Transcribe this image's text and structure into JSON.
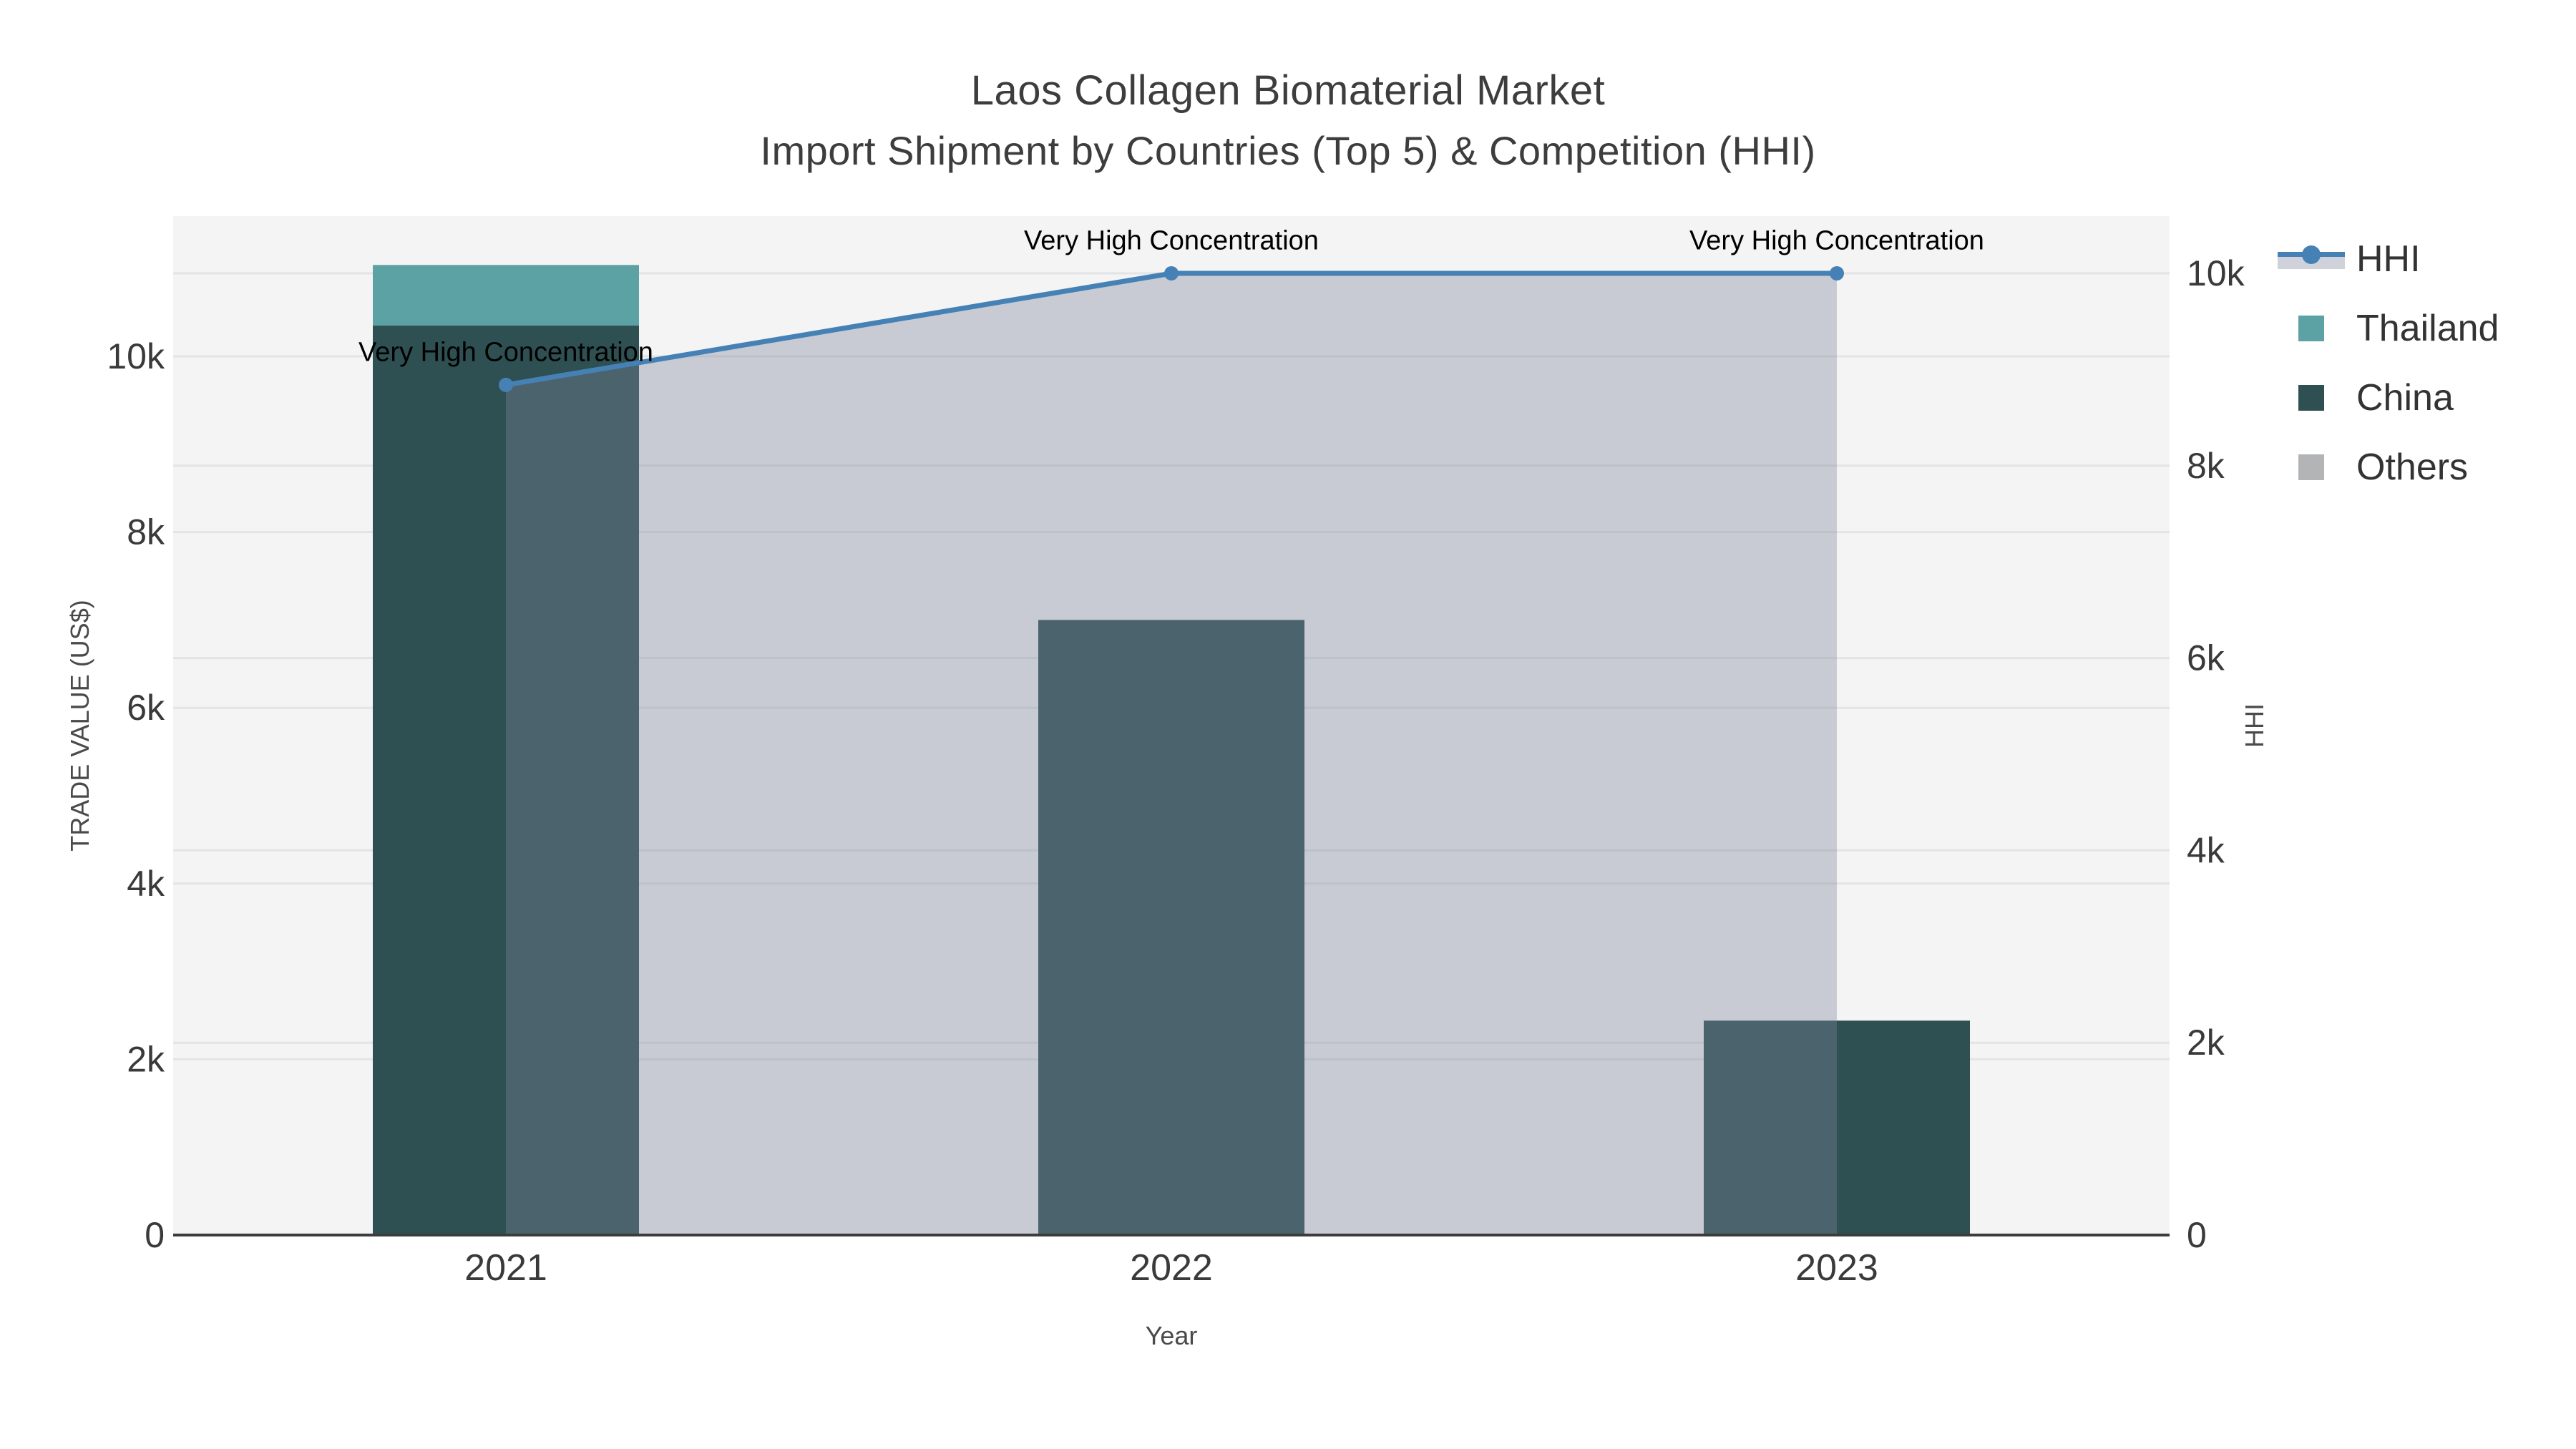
{
  "title": {
    "line1": "Laos Collagen Biomaterial Market",
    "line2": "Import Shipment by Countries (Top 5) & Competition (HHI)"
  },
  "axes": {
    "x": {
      "title": "Year"
    },
    "y_left": {
      "title": "TRADE VALUE (US$)",
      "tick_labels": [
        "0",
        "2k",
        "4k",
        "6k",
        "8k",
        "10k"
      ],
      "tick_values": [
        0,
        2000,
        4000,
        6000,
        8000,
        10000
      ]
    },
    "y_right": {
      "title": "HHI",
      "tick_labels": [
        "0",
        "2k",
        "4k",
        "6k",
        "8k",
        "10k"
      ],
      "tick_values": [
        0,
        2000,
        4000,
        6000,
        8000,
        10000
      ]
    }
  },
  "legend": {
    "items": [
      {
        "label": "HHI"
      },
      {
        "label": "Thailand"
      },
      {
        "label": "China"
      },
      {
        "label": "Others"
      }
    ]
  },
  "annotations": [
    {
      "text": "Very High Concentration",
      "category": "2021"
    },
    {
      "text": "Very High Concentration",
      "category": "2022"
    },
    {
      "text": "Very High Concentration",
      "category": "2023"
    }
  ],
  "colors": {
    "plot_bg": "#F4F4F4",
    "grid": "#E2E4E6",
    "axis_line": "#3C3C3C",
    "tick_text": "#3A3A3A",
    "hhi_line": "#4681B6",
    "hhi_area": "rgba(125,134,154,0.37)",
    "thailand": "#5CA2A4",
    "china": "#2F5052",
    "others": "#B2B4B5"
  },
  "chart_data": {
    "type": "combo",
    "categories": [
      "2021",
      "2022",
      "2023"
    ],
    "series": [
      {
        "name": "Thailand",
        "type": "bar",
        "stack": true,
        "yaxis": "left",
        "values": [
          690,
          0,
          0
        ],
        "color": "#5CA2A4"
      },
      {
        "name": "China",
        "type": "bar",
        "stack": true,
        "yaxis": "left",
        "values": [
          10350,
          7000,
          2440
        ],
        "color": "#2F5052"
      },
      {
        "name": "Others",
        "type": "bar",
        "stack": true,
        "yaxis": "left",
        "values": [
          0,
          0,
          0
        ],
        "color": "#B2B4B5"
      },
      {
        "name": "HHI",
        "type": "line",
        "area": true,
        "yaxis": "right",
        "values": [
          8840,
          10000,
          10000
        ],
        "color": "#4681B6",
        "area_color": "rgba(125,134,154,0.37)"
      }
    ],
    "title": "Laos Collagen Biomaterial Market — Import Shipment by Countries (Top 5) & Competition (HHI)",
    "xlabel": "Year",
    "ylabel_left": "TRADE VALUE (US$)",
    "ylabel_right": "HHI",
    "y_left_ticks": [
      0,
      2000,
      4000,
      6000,
      8000,
      10000
    ],
    "y_right_ticks": [
      0,
      2000,
      4000,
      6000,
      8000,
      10000
    ],
    "y_left_range": [
      0,
      11600
    ],
    "y_right_range": [
      0,
      10600
    ],
    "grid": true,
    "legend_position": "right"
  }
}
